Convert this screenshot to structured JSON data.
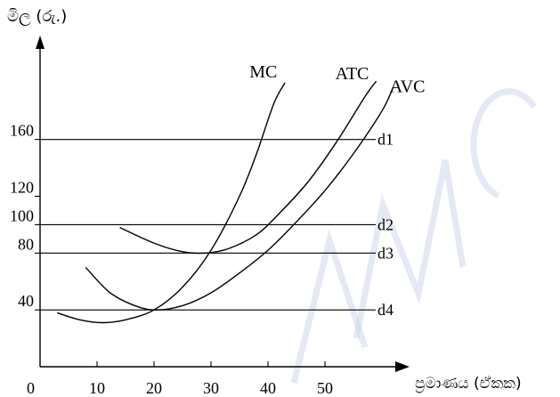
{
  "chart_data": {
    "type": "line",
    "ylabel": "මිල (රු.)",
    "xlabel": "ප්‍රමාණය (ඒකක)",
    "origin_label": "0",
    "x_ticks": [
      10,
      20,
      30,
      40,
      50
    ],
    "y_ticks": [
      40,
      80,
      100,
      120,
      160
    ],
    "xlim": [
      0,
      60
    ],
    "ylim": [
      0,
      200
    ],
    "grid": false,
    "demand_lines": [
      {
        "name": "d1",
        "y": 160
      },
      {
        "name": "d2",
        "y": 100
      },
      {
        "name": "d3",
        "y": 80
      },
      {
        "name": "d4",
        "y": 40
      }
    ],
    "series": [
      {
        "name": "MC",
        "points": [
          [
            3,
            38
          ],
          [
            7,
            33
          ],
          [
            11,
            31
          ],
          [
            15,
            33
          ],
          [
            20,
            40
          ],
          [
            25,
            56
          ],
          [
            30,
            82
          ],
          [
            35,
            120
          ],
          [
            38,
            150
          ],
          [
            41,
            185
          ],
          [
            43,
            200
          ]
        ]
      },
      {
        "name": "ATC",
        "points": [
          [
            14,
            98
          ],
          [
            20,
            87
          ],
          [
            25,
            81
          ],
          [
            29,
            80
          ],
          [
            33,
            83
          ],
          [
            38,
            93
          ],
          [
            42,
            108
          ],
          [
            47,
            130
          ],
          [
            52,
            158
          ],
          [
            57,
            190
          ],
          [
            59,
            201
          ]
        ]
      },
      {
        "name": "AVC",
        "points": [
          [
            8,
            70
          ],
          [
            12,
            53
          ],
          [
            16,
            44
          ],
          [
            20,
            40
          ],
          [
            25,
            43
          ],
          [
            30,
            52
          ],
          [
            35,
            66
          ],
          [
            40,
            82
          ],
          [
            45,
            102
          ],
          [
            50,
            124
          ],
          [
            55,
            150
          ],
          [
            60,
            180
          ],
          [
            62,
            197
          ]
        ]
      }
    ]
  }
}
